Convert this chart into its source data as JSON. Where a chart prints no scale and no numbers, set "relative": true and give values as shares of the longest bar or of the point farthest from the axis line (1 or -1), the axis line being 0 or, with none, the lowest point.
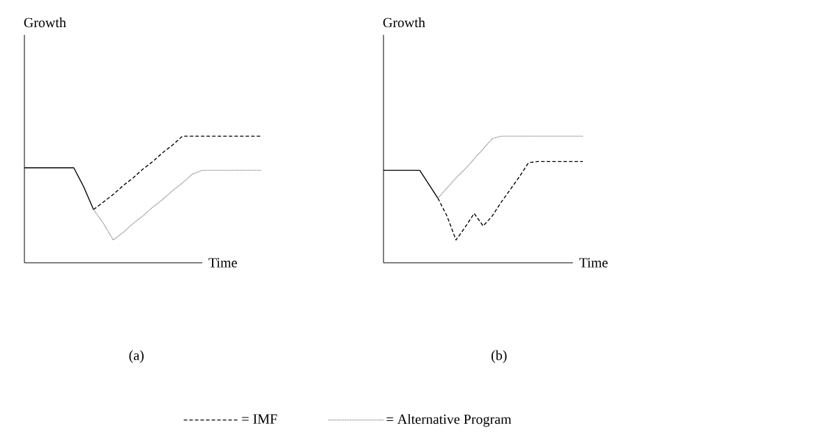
{
  "chart_data": [
    {
      "type": "line",
      "title": "(a)",
      "xlabel": "Time",
      "ylabel": "Growth",
      "relative": true,
      "tick_labels": false,
      "legend": "bottom",
      "categories": [
        null,
        null,
        null,
        null,
        null,
        null,
        null,
        null,
        null,
        null,
        null,
        null,
        null,
        null,
        null,
        null,
        null,
        null,
        null,
        null,
        null,
        null,
        null,
        null,
        null
      ],
      "series": [
        {
          "color": "#000000",
          "line_style": "solid",
          "values": [
            0.75,
            0.75,
            0.75,
            0.75,
            0.75,
            0.75,
            0.6,
            0.42,
            null,
            null,
            null,
            null,
            null,
            null,
            null,
            null,
            null,
            null,
            null,
            null,
            null,
            null,
            null,
            null,
            null
          ]
        },
        {
          "name": "= IMF",
          "color": "#000000",
          "line_style": "dashed",
          "values": [
            null,
            null,
            null,
            null,
            null,
            null,
            null,
            0.42,
            0.48,
            0.54,
            0.61,
            0.67,
            0.74,
            0.8,
            0.87,
            0.93,
            1,
            1,
            1,
            1,
            1,
            1,
            1,
            1,
            1
          ]
        },
        {
          "name": "= Alternative Program",
          "color": "#888888",
          "line_style": "dotted",
          "values": [
            null,
            null,
            null,
            null,
            null,
            null,
            null,
            0.42,
            0.31,
            0.18,
            0.24,
            0.31,
            0.37,
            0.44,
            0.5,
            0.57,
            0.63,
            0.7,
            0.73,
            0.73,
            0.73,
            0.73,
            0.73,
            0.73,
            0.73
          ]
        }
      ]
    },
    {
      "type": "line",
      "title": "(b)",
      "xlabel": "Time",
      "ylabel": "Growth",
      "relative": true,
      "tick_labels": false,
      "categories": [
        null,
        null,
        null,
        null,
        null,
        null,
        null,
        null,
        null,
        null,
        null,
        null,
        null,
        null,
        null,
        null,
        null,
        null,
        null,
        null,
        null,
        null,
        null
      ],
      "series": [
        {
          "color": "#000000",
          "line_style": "solid",
          "values": [
            0.73,
            0.73,
            0.73,
            0.73,
            0.73,
            0.62,
            0.51,
            null,
            null,
            null,
            null,
            null,
            null,
            null,
            null,
            null,
            null,
            null,
            null,
            null,
            null,
            null,
            null
          ]
        },
        {
          "color": "#000000",
          "line_style": "dashed",
          "values": [
            null,
            null,
            null,
            null,
            null,
            null,
            0.51,
            0.37,
            0.18,
            0.28,
            0.39,
            0.29,
            0.37,
            0.48,
            0.58,
            0.68,
            0.79,
            0.8,
            0.8,
            0.8,
            0.8,
            0.8,
            0.8
          ]
        },
        {
          "color": "#888888",
          "line_style": "dotted",
          "values": [
            null,
            null,
            null,
            null,
            null,
            null,
            0.51,
            0.59,
            0.67,
            0.74,
            0.82,
            0.9,
            0.98,
            1,
            1,
            1,
            1,
            1,
            1,
            1,
            1,
            1,
            1
          ]
        }
      ]
    }
  ]
}
